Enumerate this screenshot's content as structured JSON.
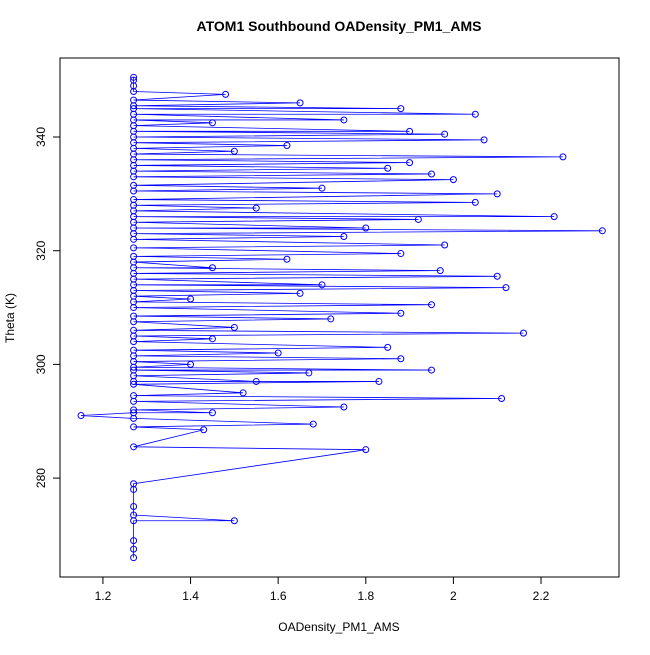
{
  "chart_data": {
    "type": "line",
    "title": "ATOM1 Southbound OADensity_PM1_AMS",
    "x_label": "OADensity_PM1_AMS",
    "y_label": "Theta (K)",
    "color": "#0000ff",
    "x": [
      1.27,
      1.27,
      1.27,
      1.27,
      1.5,
      1.27,
      1.27,
      1.27,
      1.27,
      1.8,
      1.27,
      1.43,
      1.27,
      1.68,
      1.27,
      1.15,
      1.27,
      1.45,
      1.27,
      1.75,
      1.27,
      2.11,
      1.27,
      1.52,
      1.27,
      1.83,
      1.27,
      1.55,
      1.27,
      1.67,
      1.27,
      1.95,
      1.27,
      1.4,
      1.27,
      1.88,
      1.27,
      1.6,
      1.27,
      1.85,
      1.27,
      1.45,
      1.27,
      2.16,
      1.27,
      1.5,
      1.27,
      1.72,
      1.27,
      1.88,
      1.27,
      1.95,
      1.27,
      1.4,
      1.27,
      1.65,
      1.27,
      2.12,
      1.27,
      1.7,
      1.27,
      2.1,
      1.27,
      1.97,
      1.27,
      1.45,
      1.27,
      1.62,
      1.27,
      1.88,
      1.27,
      1.98,
      1.27,
      1.75,
      1.27,
      2.34,
      1.27,
      1.8,
      1.27,
      1.92,
      1.27,
      2.23,
      1.27,
      1.55,
      1.27,
      2.05,
      1.27,
      2.1,
      1.27,
      1.7,
      1.27,
      2.0,
      1.27,
      1.95,
      1.27,
      1.85,
      1.27,
      1.9,
      1.27,
      2.25,
      1.27,
      1.5,
      1.27,
      1.62,
      1.27,
      2.07,
      1.27,
      1.98,
      1.27,
      1.9,
      1.27,
      1.45,
      1.27,
      1.75,
      1.27,
      2.05,
      1.27,
      1.88,
      1.27,
      1.65,
      1.27,
      1.48,
      1.27,
      1.27,
      1.27,
      1.27
    ],
    "values": [
      266,
      267.5,
      269,
      272.5,
      272.5,
      273.5,
      275,
      278,
      279,
      285,
      285.5,
      288.5,
      289,
      289.5,
      290.5,
      291,
      291.5,
      291.5,
      292,
      292.5,
      293.5,
      294,
      294.5,
      295,
      296.5,
      297,
      297,
      297,
      298,
      298.5,
      299,
      299,
      299.5,
      300,
      300.5,
      301,
      301.5,
      302,
      302.5,
      303,
      304,
      304.5,
      305,
      305.5,
      306,
      306.5,
      307.5,
      308,
      308.5,
      309,
      310,
      310.5,
      311,
      311.5,
      312,
      312.5,
      313,
      313.5,
      314,
      314,
      315,
      315.5,
      316,
      316.5,
      317,
      317,
      318,
      318.5,
      319,
      319.5,
      320.5,
      321,
      322,
      322.5,
      323,
      323.5,
      324,
      324,
      325,
      325.5,
      326,
      326,
      327,
      327.5,
      328,
      328.5,
      329,
      330,
      330.5,
      331,
      331.5,
      332.5,
      333,
      333.5,
      334,
      334.5,
      335,
      335.5,
      336,
      336.5,
      337,
      337.5,
      338,
      338.5,
      339,
      339.5,
      340,
      340.5,
      341,
      341,
      342,
      342.5,
      343,
      343,
      344,
      344,
      345,
      345,
      345.5,
      346,
      346.5,
      347.5,
      348,
      349,
      350,
      350.5
    ],
    "xlim": [
      1.102,
      2.378
    ],
    "ylim": [
      262.6,
      353.9
    ],
    "xticks": [
      1.2,
      1.4,
      1.6,
      1.8,
      2.0,
      2.2
    ],
    "yticks": [
      280,
      300,
      320,
      340
    ]
  }
}
